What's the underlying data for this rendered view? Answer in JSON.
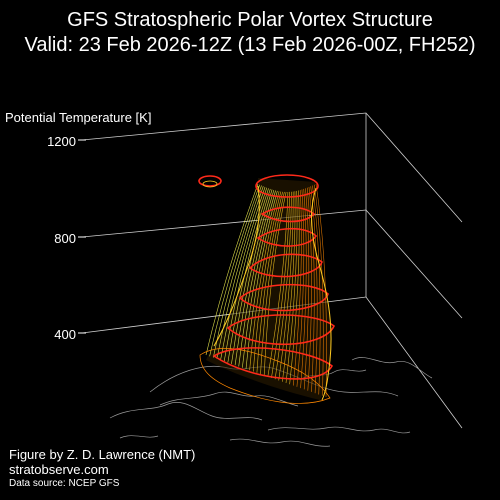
{
  "figure": {
    "title_line1": "GFS Stratospheric Polar Vortex Structure",
    "title_line2": "Valid: 23 Feb 2026-12Z  (13 Feb 2026-00Z, FH252)",
    "axis_label": "Potential Temperature [K]",
    "ticks": [
      "400",
      "800",
      "1200"
    ],
    "credit_line1": "Figure by Z. D. Lawrence (NMT)",
    "credit_line2": "stratobserve.com",
    "credit_line3": "Data source: NCEP GFS"
  },
  "colors": {
    "background": "#000000",
    "text": "#ffffff",
    "grid": "#cfcfcf",
    "coastline": "#9a9a9a",
    "vortex_outer": "#ff2a1a",
    "vortex_mesh_high": "#ffff55",
    "vortex_mesh_mid": "#ffcc22",
    "vortex_mesh_low": "#ff8800"
  }
}
